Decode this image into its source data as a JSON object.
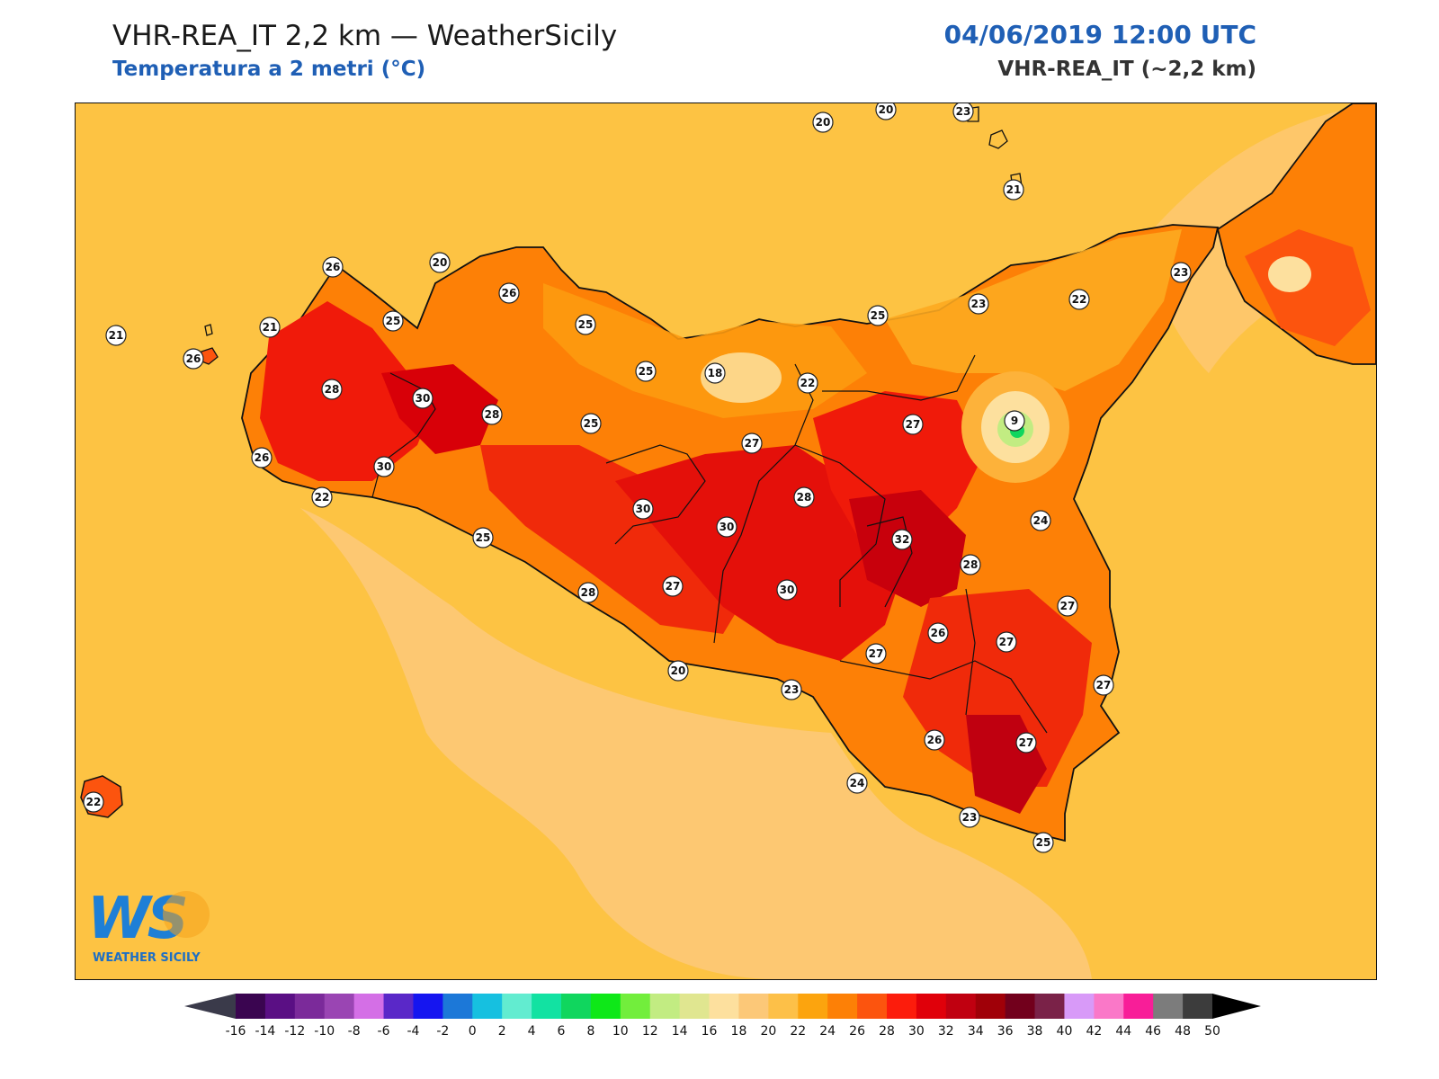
{
  "header": {
    "title": "VHR-REA_IT 2,2 km — WeatherSicily",
    "subtitle": "Temperatura a 2 metri (°C)",
    "datetime": "04/06/2019 12:00 UTC",
    "model": "VHR-REA_IT (~2,2 km)"
  },
  "logo": {
    "mark": "WS",
    "name": "WEATHER SICILY"
  },
  "colorbar": {
    "ticks": [
      "-16",
      "-14",
      "-12",
      "-10",
      "-8",
      "-6",
      "-4",
      "-2",
      "0",
      "2",
      "4",
      "6",
      "8",
      "10",
      "12",
      "14",
      "16",
      "18",
      "20",
      "22",
      "24",
      "26",
      "28",
      "30",
      "32",
      "34",
      "36",
      "38",
      "40",
      "42",
      "44",
      "46",
      "48",
      "50"
    ],
    "colors": [
      "#3a0550",
      "#5a0f84",
      "#7b2a9a",
      "#9a45b3",
      "#d46fe6",
      "#5a28c8",
      "#1515f0",
      "#1c78d8",
      "#16c0e0",
      "#62ecd0",
      "#12e2a2",
      "#10d65e",
      "#0ee818",
      "#72ee3c",
      "#c2ec82",
      "#e0e690",
      "#fde09e",
      "#fcc878",
      "#fdc048",
      "#fca40e",
      "#fd8006",
      "#fc540e",
      "#fc1c0c",
      "#e0000a",
      "#c00010",
      "#a00008",
      "#72001c",
      "#7a2248",
      "#d89af8",
      "#fa78c8",
      "#f81e98",
      "#7c7c7c",
      "#3c3c3c"
    ],
    "under_color": "#3a3a4a",
    "over_color": "#000000"
  },
  "stations": [
    {
      "value": "20"
    },
    {
      "value": "20"
    },
    {
      "value": "23"
    },
    {
      "value": "21"
    },
    {
      "value": "23"
    },
    {
      "value": "22"
    },
    {
      "value": "26"
    },
    {
      "value": "20"
    },
    {
      "value": "26"
    },
    {
      "value": "21"
    },
    {
      "value": "25"
    },
    {
      "value": "25"
    },
    {
      "value": "21"
    },
    {
      "value": "26"
    },
    {
      "value": "28"
    },
    {
      "value": "30"
    },
    {
      "value": "28"
    },
    {
      "value": "25"
    },
    {
      "value": "18"
    },
    {
      "value": "22"
    },
    {
      "value": "25"
    },
    {
      "value": "23"
    },
    {
      "value": "25"
    },
    {
      "value": "27"
    },
    {
      "value": "9"
    },
    {
      "value": "27"
    },
    {
      "value": "26"
    },
    {
      "value": "30"
    },
    {
      "value": "22"
    },
    {
      "value": "28"
    },
    {
      "value": "30"
    },
    {
      "value": "30"
    },
    {
      "value": "24"
    },
    {
      "value": "25"
    },
    {
      "value": "32"
    },
    {
      "value": "28"
    },
    {
      "value": "27"
    },
    {
      "value": "27"
    },
    {
      "value": "28"
    },
    {
      "value": "30"
    },
    {
      "value": "26"
    },
    {
      "value": "27"
    },
    {
      "value": "27"
    },
    {
      "value": "20"
    },
    {
      "value": "23"
    },
    {
      "value": "27"
    },
    {
      "value": "26"
    },
    {
      "value": "27"
    },
    {
      "value": "24"
    },
    {
      "value": "23"
    },
    {
      "value": "25"
    },
    {
      "value": "22"
    }
  ]
}
